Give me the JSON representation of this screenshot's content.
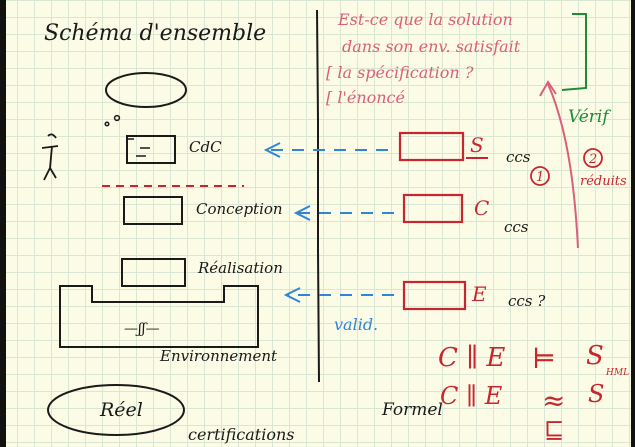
{
  "title": "Schéma d'ensemble",
  "note": {
    "line1": "Est-ce que la solution",
    "line2": "dans son env. satisfait",
    "line3": "[ la spécification ?",
    "line4": "[ l'énoncé"
  },
  "verif": "Vérif",
  "left": {
    "cdc": "CdC",
    "conception": "Conception",
    "realisation": "Réalisation",
    "env_symbol": "—ʃʃ—",
    "environnement": "Environnement",
    "reel": "Réel",
    "certifications": "certifications"
  },
  "right": {
    "s": "S",
    "c": "C",
    "e": "E",
    "ccs1": "ccs",
    "ccs2": "ccs",
    "ccs3": "ccs ?",
    "circle1": "1",
    "circle2": "2",
    "reduits": "réduits",
    "valid": "valid.",
    "formel": "Formel",
    "eq1_left": "C ∥ E",
    "eq1_op": "⊨",
    "eq1_right": "S",
    "eq1_sub": "HML",
    "eq2_left": "C ∥ E",
    "eq2_op": "≈",
    "eq2_right": "S",
    "eq2_extra": "⊑"
  },
  "colors": {
    "ink": "#1a1a1a",
    "red": "#c8262e",
    "pink": "#d9607a",
    "blue": "#2f86d6",
    "green": "#1f8a3a"
  }
}
